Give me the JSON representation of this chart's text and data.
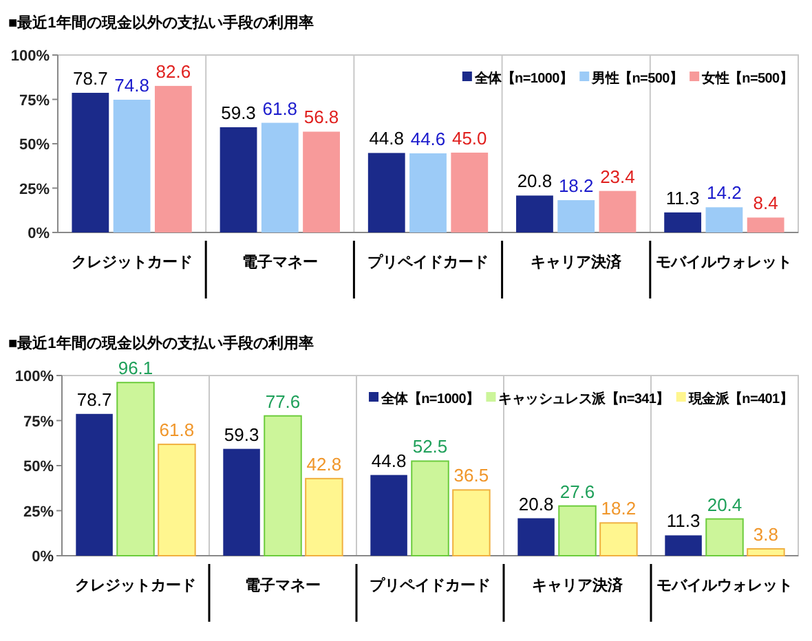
{
  "chart_data": [
    {
      "type": "bar",
      "title": "■最近1年間の現金以外の支払い手段の利用率",
      "categories": [
        "クレジットカード",
        "電子マネー",
        "プリペイドカード",
        "キャリア決済",
        "モバイルウォレット"
      ],
      "series": [
        {
          "name": "全体【n=1000】",
          "color": "#1b2a8a",
          "values": [
            78.7,
            59.3,
            44.8,
            20.8,
            11.3
          ],
          "value_labels": [
            "78.7",
            "59.3",
            "44.8",
            "20.8",
            "11.3"
          ]
        },
        {
          "name": "男性【n=500】",
          "color": "#9ccbf7",
          "values": [
            74.8,
            61.8,
            44.6,
            18.2,
            14.2
          ],
          "value_labels": [
            "74.8",
            "61.8",
            "44.6",
            "18.2",
            "14.2"
          ]
        },
        {
          "name": "女性【n=500】",
          "color": "#f79a9a",
          "values": [
            82.6,
            56.8,
            45.0,
            23.4,
            8.4
          ],
          "value_labels": [
            "82.6",
            "56.8",
            "45.0",
            "23.4",
            "8.4"
          ]
        }
      ],
      "ylim": [
        0,
        100
      ],
      "yticks": [
        {
          "value": 0,
          "label": "0%"
        },
        {
          "value": 25,
          "label": "25%"
        },
        {
          "value": 50,
          "label": "50%"
        },
        {
          "value": 75,
          "label": "75%"
        },
        {
          "value": 100,
          "label": "100%"
        }
      ],
      "legend": "top right",
      "grid": false
    },
    {
      "type": "bar",
      "title": "■最近1年間の現金以外の支払い手段の利用率",
      "categories": [
        "クレジットカード",
        "電子マネー",
        "プリペイドカード",
        "キャリア決済",
        "モバイルウォレット"
      ],
      "series": [
        {
          "name": "全体【n=1000】",
          "color": "#1b2a8a",
          "values": [
            78.7,
            59.3,
            44.8,
            20.8,
            11.3
          ],
          "value_labels": [
            "78.7",
            "59.3",
            "44.8",
            "20.8",
            "11.3"
          ]
        },
        {
          "name": "キャッシュレス派【n=341】",
          "color": "#ccf59a",
          "values": [
            96.1,
            77.6,
            52.5,
            27.6,
            20.4
          ],
          "value_labels": [
            "96.1",
            "77.6",
            "52.5",
            "27.6",
            "20.4"
          ]
        },
        {
          "name": "現金派【n=401】",
          "color": "#fff68f",
          "values": [
            61.8,
            42.8,
            36.5,
            18.2,
            3.8
          ],
          "value_labels": [
            "61.8",
            "42.8",
            "36.5",
            "18.2",
            "3.8"
          ]
        }
      ],
      "ylim": [
        0,
        100
      ],
      "yticks": [
        {
          "value": 0,
          "label": "0%"
        },
        {
          "value": 25,
          "label": "25%"
        },
        {
          "value": 50,
          "label": "50%"
        },
        {
          "value": 75,
          "label": "75%"
        },
        {
          "value": 100,
          "label": "100%"
        }
      ],
      "legend": "top right",
      "grid": false
    }
  ]
}
